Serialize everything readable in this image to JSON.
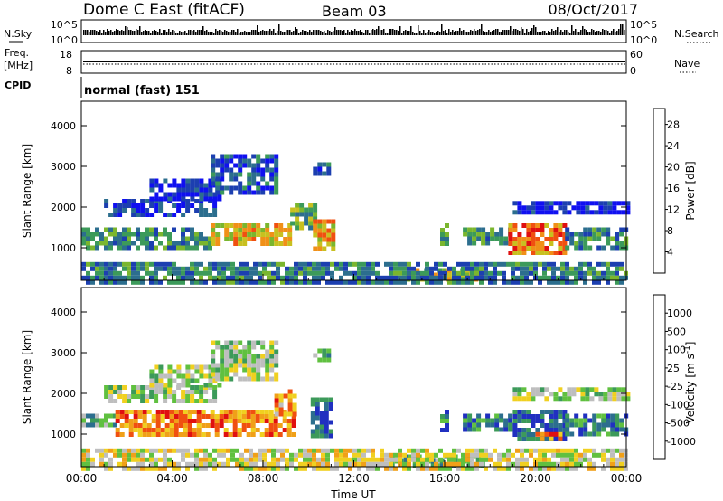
{
  "header": {
    "title": "Dome C East (fitACF)",
    "beam": "Beam 03",
    "date": "08/Oct/2017"
  },
  "noise_panel": {
    "left_label": "N.Sky",
    "left_ticks": [
      "10^5",
      "10^0"
    ],
    "right_label": "N.Search",
    "right_ticks": [
      "10^5",
      "10^0"
    ]
  },
  "freq_panel": {
    "left_label_1": "Freq.",
    "left_label_2": "[MHz]",
    "left_ticks": [
      "18",
      "8"
    ],
    "right_label": "Nave",
    "right_ticks": [
      "60",
      "0"
    ]
  },
  "cpid_panel": {
    "label": "CPID",
    "mode": "normal (fast) 151"
  },
  "chart_data": [
    {
      "type": "heatmap",
      "name": "power",
      "ylabel": "Slant Range [km]",
      "yticks": [
        "1000",
        "2000",
        "3000",
        "4000"
      ],
      "ylim": [
        200,
        4600
      ],
      "xlim_hours": [
        0,
        24
      ],
      "xticks": [
        "00:00",
        "04:00",
        "08:00",
        "12:00",
        "16:00",
        "20:00",
        "00:00"
      ],
      "colorbar": {
        "label": "Power [dB]",
        "ticks": [
          "4",
          "8",
          "12",
          "16",
          "20",
          "24",
          "28"
        ],
        "range": [
          0,
          31
        ],
        "colors": [
          "#1010f0",
          "#1c3fb0",
          "#2c6e8e",
          "#3c9a5a",
          "#7ab62e",
          "#c8c020",
          "#f09018",
          "#f05010",
          "#e01010"
        ]
      },
      "regions": [
        {
          "hours": [
            0.0,
            5.7
          ],
          "range_km": [
            1050,
            1500
          ],
          "level": 0.35
        },
        {
          "hours": [
            5.7,
            9.2
          ],
          "range_km": [
            1050,
            1600
          ],
          "level": 0.65
        },
        {
          "hours": [
            9.2,
            10.2
          ],
          "range_km": [
            1500,
            2100
          ],
          "level": 0.45
        },
        {
          "hours": [
            10.2,
            11.1
          ],
          "range_km": [
            1000,
            1700
          ],
          "level": 0.7
        },
        {
          "hours": [
            1.0,
            5.8
          ],
          "range_km": [
            1800,
            2200
          ],
          "level": 0.15
        },
        {
          "hours": [
            3.0,
            6.0
          ],
          "range_km": [
            2200,
            2700
          ],
          "level": 0.12
        },
        {
          "hours": [
            5.7,
            8.6
          ],
          "range_km": [
            2400,
            3300
          ],
          "level": 0.2
        },
        {
          "hours": [
            10.2,
            10.9
          ],
          "range_km": [
            2850,
            3100
          ],
          "level": 0.2
        },
        {
          "hours": [
            14.3,
            17.6
          ],
          "range_km": [
            250,
            500
          ],
          "level": 0.6
        },
        {
          "hours": [
            15.8,
            16.1
          ],
          "range_km": [
            1100,
            1600
          ],
          "level": 0.4
        },
        {
          "hours": [
            16.8,
            18.8
          ],
          "range_km": [
            1100,
            1500
          ],
          "level": 0.35
        },
        {
          "hours": [
            18.8,
            21.3
          ],
          "range_km": [
            900,
            1600
          ],
          "level": 0.8
        },
        {
          "hours": [
            21.3,
            24.0
          ],
          "range_km": [
            1000,
            1500
          ],
          "level": 0.3
        },
        {
          "hours": [
            19.0,
            24.0
          ],
          "range_km": [
            1850,
            2150
          ],
          "level": 0.08
        },
        {
          "hours": [
            0.0,
            24.0
          ],
          "range_km": [
            200,
            650
          ],
          "level": 0.3
        }
      ]
    },
    {
      "type": "heatmap",
      "name": "velocity",
      "ylabel": "Slant Range [km]",
      "yticks": [
        "1000",
        "2000",
        "3000",
        "4000"
      ],
      "ylim": [
        200,
        4600
      ],
      "xlim_hours": [
        0,
        24
      ],
      "xticks": [
        "00:00",
        "04:00",
        "08:00",
        "12:00",
        "16:00",
        "20:00",
        "00:00"
      ],
      "xlabel": "Time UT",
      "colorbar": {
        "label": "Velocity [m s^-1]",
        "ticks": [
          "1000",
          "500",
          "100",
          "25",
          "-25",
          "-100",
          "-500",
          "-1000"
        ],
        "colors": [
          "#2030c0",
          "#2c6e8e",
          "#3c9a5a",
          "#60c040",
          "#bebebe",
          "#f0d020",
          "#f0a018",
          "#f05010",
          "#e01010"
        ]
      },
      "regions": [
        {
          "hours": [
            0.0,
            1.5
          ],
          "range_km": [
            1200,
            1500
          ],
          "level": 0.33
        },
        {
          "hours": [
            1.5,
            9.3
          ],
          "range_km": [
            1000,
            1600
          ],
          "level": 0.78
        },
        {
          "hours": [
            8.5,
            9.3
          ],
          "range_km": [
            1500,
            2100
          ],
          "level": 0.72
        },
        {
          "hours": [
            10.1,
            11.0
          ],
          "range_km": [
            1000,
            1900
          ],
          "level": 0.15
        },
        {
          "hours": [
            1.0,
            5.8
          ],
          "range_km": [
            1800,
            2200
          ],
          "level": 0.45
        },
        {
          "hours": [
            3.0,
            6.0
          ],
          "range_km": [
            2200,
            2700
          ],
          "level": 0.45
        },
        {
          "hours": [
            5.7,
            8.6
          ],
          "range_km": [
            2400,
            3300
          ],
          "level": 0.45
        },
        {
          "hours": [
            10.2,
            10.9
          ],
          "range_km": [
            2850,
            3100
          ],
          "level": 0.33
        },
        {
          "hours": [
            13.6,
            17.6
          ],
          "range_km": [
            250,
            500
          ],
          "level": 0.3
        },
        {
          "hours": [
            15.8,
            16.1
          ],
          "range_km": [
            1100,
            1600
          ],
          "level": 0.22
        },
        {
          "hours": [
            16.8,
            19.0
          ],
          "range_km": [
            1100,
            1500
          ],
          "level": 0.22
        },
        {
          "hours": [
            19.0,
            21.3
          ],
          "range_km": [
            900,
            1600
          ],
          "level": 0.12
        },
        {
          "hours": [
            20.0,
            21.0
          ],
          "range_km": [
            850,
            1050
          ],
          "level": 0.8
        },
        {
          "hours": [
            21.3,
            24.0
          ],
          "range_km": [
            1000,
            1500
          ],
          "level": 0.22
        },
        {
          "hours": [
            19.0,
            24.0
          ],
          "range_km": [
            1850,
            2150
          ],
          "level": 0.45
        },
        {
          "hours": [
            0.0,
            24.0
          ],
          "range_km": [
            200,
            650
          ],
          "level": 0.55
        }
      ]
    }
  ]
}
